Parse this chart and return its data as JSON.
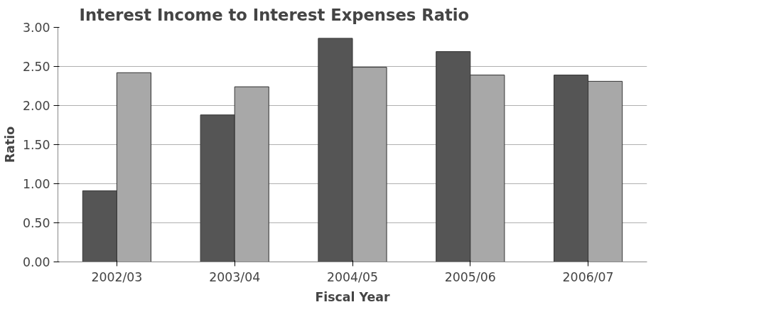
{
  "chart_data": {
    "type": "bar",
    "title": "Interest Income to Interest Expenses Ratio",
    "xlabel": "Fiscal Year",
    "ylabel": "Ratio",
    "categories": [
      "2002/03",
      "2003/04",
      "2004/05",
      "2005/06",
      "2006/07"
    ],
    "series": [
      {
        "color": "#555555",
        "values": [
          0.91,
          1.88,
          2.86,
          2.69,
          2.39
        ]
      },
      {
        "color": "#a8a8a8",
        "values": [
          2.42,
          2.24,
          2.49,
          2.39,
          2.31
        ]
      }
    ],
    "ylim": [
      0,
      3
    ],
    "yticks": [
      {
        "value": 0,
        "label": "0.00"
      },
      {
        "value": 0.5,
        "label": "0.50"
      },
      {
        "value": 1,
        "label": "1.00"
      },
      {
        "value": 1.5,
        "label": "1.50"
      },
      {
        "value": 2,
        "label": "2.00"
      },
      {
        "value": 2.5,
        "label": "2.50"
      },
      {
        "value": 3,
        "label": "3.00"
      }
    ],
    "grid": "y"
  }
}
